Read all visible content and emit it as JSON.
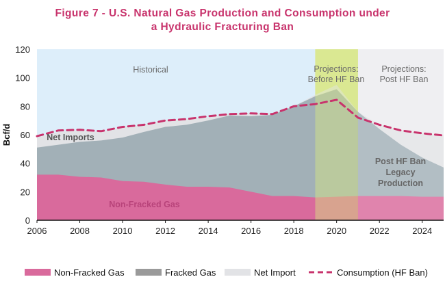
{
  "chart_data": {
    "type": "area",
    "title_line1": "Figure 7 - U.S. Natural Gas Production and Consumption under",
    "title_line2": "a Hydraulic Fracturing Ban",
    "ylabel": "Bcf/d",
    "xlabel": "",
    "xlim": [
      2006,
      2025
    ],
    "ylim": [
      0,
      120
    ],
    "x_ticks": [
      2006,
      2008,
      2010,
      2012,
      2014,
      2016,
      2018,
      2020,
      2022,
      2024
    ],
    "y_ticks": [
      0,
      20,
      40,
      60,
      80,
      100,
      120
    ],
    "x": [
      2006,
      2007,
      2008,
      2009,
      2010,
      2011,
      2012,
      2013,
      2014,
      2015,
      2016,
      2017,
      2018,
      2019,
      2020,
      2021,
      2022,
      2023,
      2024,
      2025
    ],
    "series": [
      {
        "name": "Non-Fracked Gas",
        "color": "#d96a9c",
        "values": [
          32,
          32,
          30.5,
          30,
          27.5,
          27,
          25,
          23.5,
          23.5,
          23,
          20,
          17,
          17,
          16,
          16.5,
          17,
          17,
          17,
          16.5,
          16.5
        ]
      },
      {
        "name": "Fracked Gas",
        "color": "#a2b0b7",
        "values": [
          51,
          53,
          55,
          56,
          58,
          62,
          65.5,
          67,
          70,
          73.5,
          73,
          74,
          80,
          87,
          92,
          76,
          64,
          53,
          44,
          37
        ]
      },
      {
        "name": "Net Import",
        "color": "#e2e3e6",
        "values": [
          58,
          62,
          63,
          62,
          65,
          67,
          70,
          71,
          72,
          74.5,
          75,
          74.5,
          80,
          88,
          95,
          76,
          67,
          63,
          61,
          59.5
        ]
      },
      {
        "name": "Consumption (HF Ban)",
        "color": "#c8336c",
        "style": "dashed",
        "values": [
          59,
          63,
          63.5,
          62.5,
          65.5,
          67,
          70,
          71,
          73,
          74.5,
          75,
          74.5,
          80,
          81.5,
          84.5,
          72,
          67,
          63,
          61,
          59.5
        ]
      }
    ],
    "regions": [
      {
        "label": "Historical",
        "x_range": [
          2006,
          2019
        ],
        "color": "#ddeefa"
      },
      {
        "label_line1": "Projections:",
        "label_line2": "Before HF Ban",
        "x_range": [
          2019,
          2021
        ],
        "color": "#dde7a0"
      },
      {
        "label_line1": "Projections:",
        "label_line2": "Post HF Ban",
        "x_range": [
          2021,
          2025
        ],
        "color": "#ececef"
      }
    ],
    "annotations": {
      "net_imports": "Net Imports",
      "non_fracked": "Non-Fracked Gas",
      "post_line1": "Post HF Ban",
      "post_line2": "Legacy",
      "post_line3": "Production"
    },
    "legend_position": "bottom",
    "grid": false
  }
}
